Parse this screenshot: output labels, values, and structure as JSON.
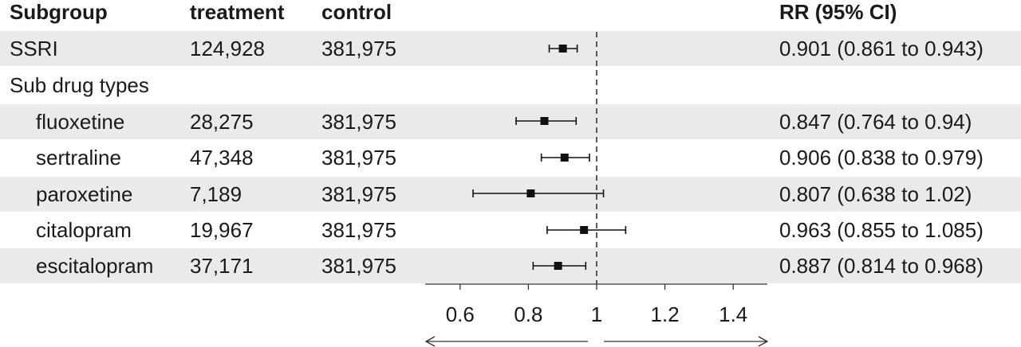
{
  "headers": {
    "subgroup": "Subgroup",
    "treatment": "treatment",
    "control": "control",
    "rr": "RR (95% CI)"
  },
  "rows": [
    {
      "label": "SSRI",
      "treatment": "124,928",
      "control": "381,975",
      "rr_text": "0.901 (0.861 to 0.943)"
    },
    {
      "label": "Sub drug types",
      "treatment": "",
      "control": "",
      "rr_text": ""
    },
    {
      "label": "fluoxetine",
      "treatment": "28,275",
      "control": "381,975",
      "rr_text": "0.847 (0.764 to 0.94)"
    },
    {
      "label": "sertraline",
      "treatment": "47,348",
      "control": "381,975",
      "rr_text": "0.906 (0.838 to 0.979)"
    },
    {
      "label": "paroxetine",
      "treatment": "7,189",
      "control": "381,975",
      "rr_text": "0.807 (0.638 to 1.02)"
    },
    {
      "label": "citalopram",
      "treatment": "19,967",
      "control": "381,975",
      "rr_text": "0.963 (0.855 to 1.085)"
    },
    {
      "label": "escitalopram",
      "treatment": "37,171",
      "control": "381,975",
      "rr_text": "0.887 (0.814 to 0.968)"
    }
  ],
  "chart_data": {
    "type": "scatter",
    "title": "",
    "xlabel": "",
    "ylabel": "",
    "xlim": [
      0.5,
      1.5
    ],
    "reference_line": 1,
    "x_ticks": [
      0.6,
      0.8,
      1,
      1.2,
      1.4
    ],
    "x_tick_labels": [
      "0.6",
      "0.8",
      "1",
      "1.2",
      "1.4"
    ],
    "series": [
      {
        "points": [
          {
            "row": "SSRI",
            "rr": 0.901,
            "lower": 0.861,
            "upper": 0.943
          },
          {
            "row": "fluoxetine",
            "rr": 0.847,
            "lower": 0.764,
            "upper": 0.94
          },
          {
            "row": "sertraline",
            "rr": 0.906,
            "lower": 0.838,
            "upper": 0.979
          },
          {
            "row": "paroxetine",
            "rr": 0.807,
            "lower": 0.638,
            "upper": 1.02
          },
          {
            "row": "citalopram",
            "rr": 0.963,
            "lower": 0.855,
            "upper": 1.085
          },
          {
            "row": "escitalopram",
            "rr": 0.887,
            "lower": 0.814,
            "upper": 0.968
          }
        ]
      }
    ],
    "grid": false,
    "colors": {
      "marker": "#111111",
      "shade": "#e9ebea",
      "text": "#1a1a1a"
    }
  }
}
